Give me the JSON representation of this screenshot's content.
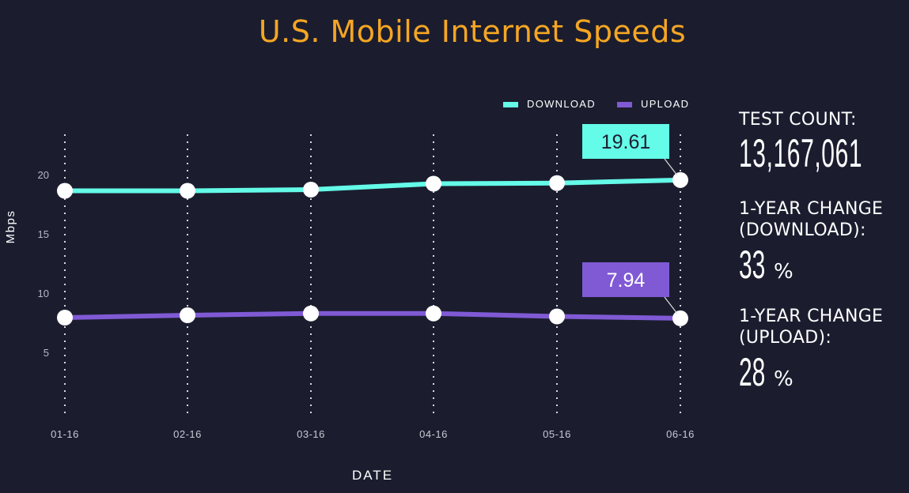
{
  "title": "U.S. Mobile Internet Speeds",
  "legend": [
    {
      "label": "DOWNLOAD",
      "color": "#64fbe8"
    },
    {
      "label": "UPLOAD",
      "color": "#805ad5"
    }
  ],
  "stats": {
    "test_count_label": "TEST COUNT:",
    "test_count_value": "13,167,061",
    "download_change_label_1": "1-YEAR CHANGE",
    "download_change_label_2": "(DOWNLOAD):",
    "download_change_value": "33",
    "upload_change_label_1": "1-YEAR CHANGE",
    "upload_change_label_2": "(UPLOAD):",
    "upload_change_value": "28",
    "percent_symbol": "%"
  },
  "callouts": {
    "download": "19.61",
    "upload": "7.94"
  },
  "chart_data": {
    "type": "line",
    "title": "U.S. Mobile Internet Speeds",
    "xlabel": "DATE",
    "ylabel": "Mbps",
    "categories": [
      "01-16",
      "02-16",
      "03-16",
      "04-16",
      "05-16",
      "06-16"
    ],
    "series": [
      {
        "name": "DOWNLOAD",
        "color": "#64fbe8",
        "values": [
          18.7,
          18.7,
          18.8,
          19.3,
          19.35,
          19.61
        ]
      },
      {
        "name": "UPLOAD",
        "color": "#805ad5",
        "values": [
          8.0,
          8.2,
          8.35,
          8.35,
          8.1,
          7.94
        ]
      }
    ],
    "yticks": [
      5,
      10,
      15,
      20
    ],
    "ylim": [
      0,
      22
    ],
    "grid": "vertical dotted",
    "legend_position": "top-right",
    "annotations": [
      {
        "series": "DOWNLOAD",
        "x": "06-16",
        "text": "19.61"
      },
      {
        "series": "UPLOAD",
        "x": "06-16",
        "text": "7.94"
      }
    ]
  }
}
